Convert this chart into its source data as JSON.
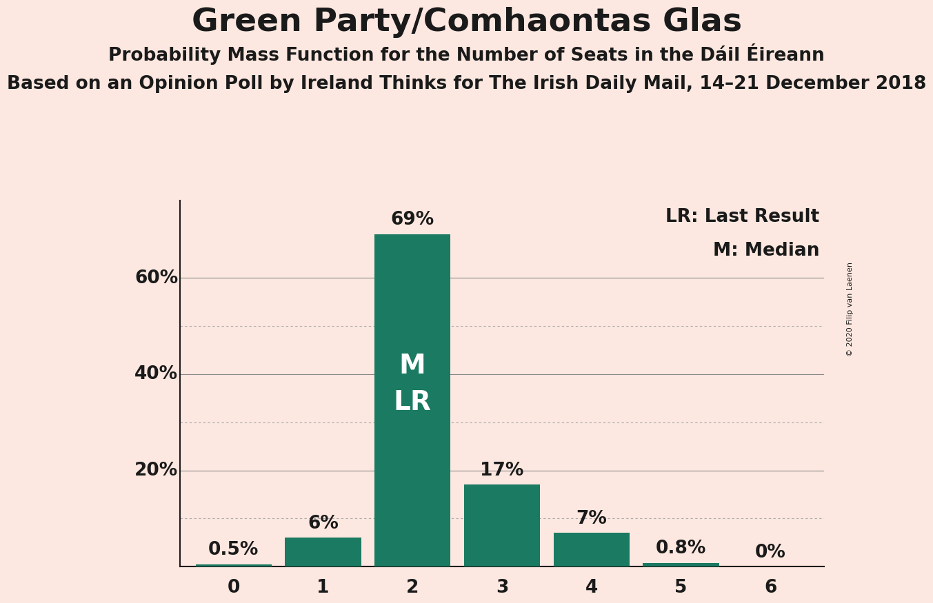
{
  "title": "Green Party/Comhaontas Glas",
  "subtitle": "Probability Mass Function for the Number of Seats in the Dáil Éireann",
  "sub2": "Based on an Opinion Poll by Ireland Thinks for The Irish Daily Mail, 14–21 December 2018",
  "copyright": "© 2020 Filip van Laenen",
  "categories": [
    0,
    1,
    2,
    3,
    4,
    5,
    6
  ],
  "values": [
    0.5,
    6.0,
    69.0,
    17.0,
    7.0,
    0.8,
    0.0
  ],
  "labels": [
    "0.5%",
    "6%",
    "69%",
    "17%",
    "7%",
    "0.8%",
    "0%"
  ],
  "bar_color": "#1a7a62",
  "background_color": "#fce8e0",
  "text_color": "#1a1a1a",
  "grid_color_solid": "#888888",
  "grid_color_dot": "#aaaaaa",
  "spine_color": "#1a1a1a",
  "major_gridlines": [
    20,
    40,
    60
  ],
  "dotted_gridlines": [
    10,
    30,
    50
  ],
  "ytick_labels": {
    "20": "20%",
    "40": "40%",
    "60": "60%"
  },
  "ylim": [
    0,
    76
  ],
  "legend_lr": "LR: Last Result",
  "legend_m": "M: Median",
  "median_bar": 2,
  "last_result_bar": 2,
  "title_fontsize": 34,
  "subtitle_fontsize": 19,
  "sub2_fontsize": 19,
  "bar_label_fontsize": 19,
  "tick_fontsize": 19,
  "legend_fontsize": 19,
  "inside_label_fontsize": 28
}
